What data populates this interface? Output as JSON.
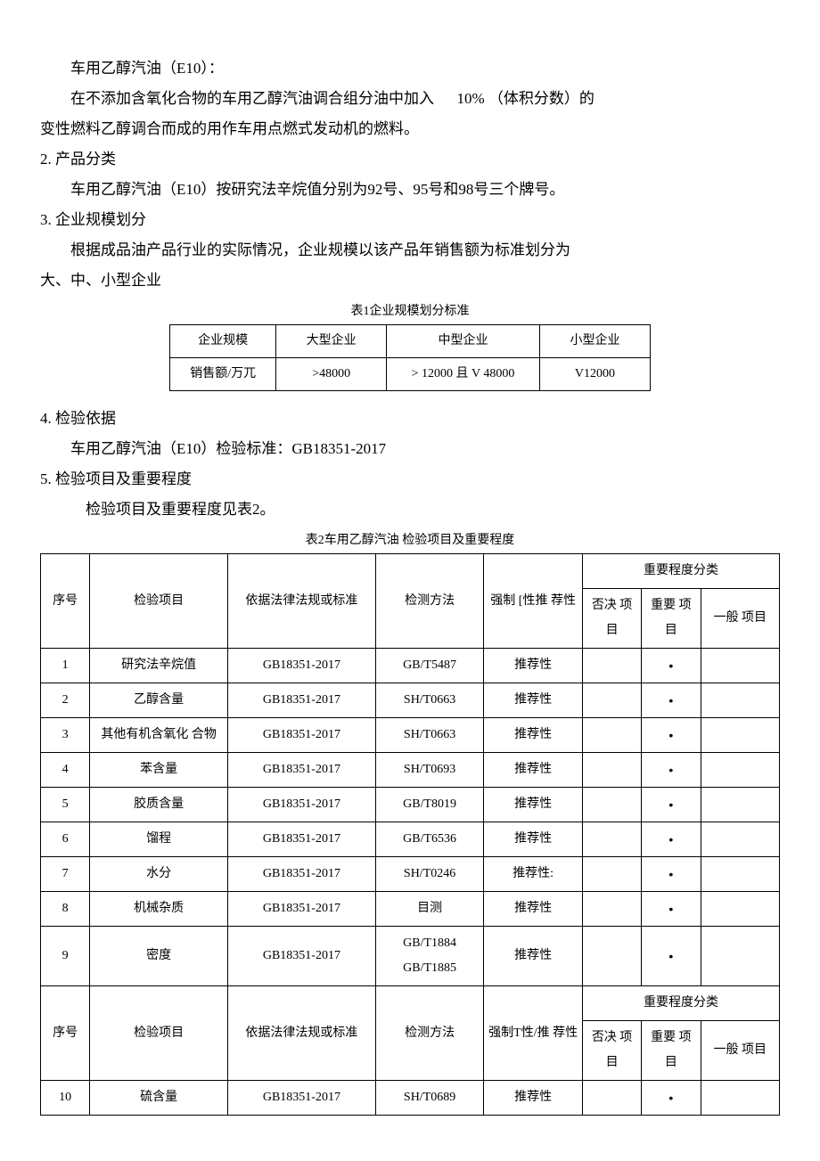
{
  "intro": {
    "line1": "车用乙醇汽油（E10）：",
    "line2a": "在不添加含氧化合物的车用乙醇汽油调合组分油中加入",
    "line2b": "10% （体积分数）的",
    "line3": "变性燃料乙醇调合而成的用作车用点燃式发动机的燃料。"
  },
  "sec2": {
    "title": "2. 产品分类",
    "body": "车用乙醇汽油（E10）按研究法辛烷值分别为92号、95号和98号三个牌号。"
  },
  "sec3": {
    "title": "3. 企业规模划分",
    "body1": "根据成品油产品行业的实际情况，企业规模以该产品年销售额为标准划分为",
    "body2": "大、中、小型企业"
  },
  "table1": {
    "caption": "表1企业规模划分标准",
    "headers": [
      "企业规模",
      "大型企业",
      "中型企业",
      "小型企业"
    ],
    "row": [
      "销售额/万兀",
      ">48000",
      "> 12000 且 V 48000",
      "V12000"
    ]
  },
  "sec4": {
    "title": "4. 检验依据",
    "body": "车用乙醇汽油（E10）检验标准：GB18351-2017"
  },
  "sec5": {
    "title": "5. 检验项目及重要程度",
    "body": "检验项目及重要程度见表2。"
  },
  "table2": {
    "caption": "表2车用乙醇汽油 检验项目及重要程度",
    "head": {
      "c1": "序号",
      "c2": "检验项目",
      "c3": "依据法律法规或标准",
      "c4": "检测方法",
      "c5a": "强制 [性推 荐性",
      "c5b": "强制T性/推 荐性",
      "c6": "重要程度分类",
      "c6a": "否决 项目",
      "c6b": "重要 项目",
      "c6c": "一般 项目"
    },
    "rows1": [
      {
        "n": "1",
        "item": "研究法辛烷值",
        "std": "GB18351-2017",
        "method": "GB/T5487",
        "type": "推荐性",
        "a": "",
        "b": "•",
        "c": ""
      },
      {
        "n": "2",
        "item": "乙醇含量",
        "std": "GB18351-2017",
        "method": "SH/T0663",
        "type": "推荐性",
        "a": "",
        "b": "•",
        "c": ""
      },
      {
        "n": "3",
        "item": "其他有机含氧化 合物",
        "std": "GB18351-2017",
        "method": "SH/T0663",
        "type": "推荐性",
        "a": "",
        "b": "•",
        "c": ""
      },
      {
        "n": "4",
        "item": "苯含量",
        "std": "GB18351-2017",
        "method": "SH/T0693",
        "type": "推荐性",
        "a": "",
        "b": "•",
        "c": ""
      },
      {
        "n": "5",
        "item": "胶质含量",
        "std": "GB18351-2017",
        "method": "GB/T8019",
        "type": "推荐性",
        "a": "",
        "b": "•",
        "c": ""
      },
      {
        "n": "6",
        "item": "馏程",
        "std": "GB18351-2017",
        "method": "GB/T6536",
        "type": "推荐性",
        "a": "",
        "b": "•",
        "c": ""
      },
      {
        "n": "7",
        "item": "水分",
        "std": "GB18351-2017",
        "method": "SH/T0246",
        "type": "推荐性:",
        "a": "",
        "b": "•",
        "c": ""
      },
      {
        "n": "8",
        "item": "机械杂质",
        "std": "GB18351-2017",
        "method": "目测",
        "type": "推荐性",
        "a": "",
        "b": "•",
        "c": ""
      },
      {
        "n": "9",
        "item": "密度",
        "std": "GB18351-2017",
        "method": "GB/T1884 GB/T1885",
        "type": "推荐性",
        "a": "",
        "b": "•",
        "c": ""
      }
    ],
    "rows2": [
      {
        "n": "10",
        "item": "硫含量",
        "std": "GB18351-2017",
        "method": "SH/T0689",
        "type": "推荐性",
        "a": "",
        "b": "•",
        "c": ""
      }
    ]
  }
}
